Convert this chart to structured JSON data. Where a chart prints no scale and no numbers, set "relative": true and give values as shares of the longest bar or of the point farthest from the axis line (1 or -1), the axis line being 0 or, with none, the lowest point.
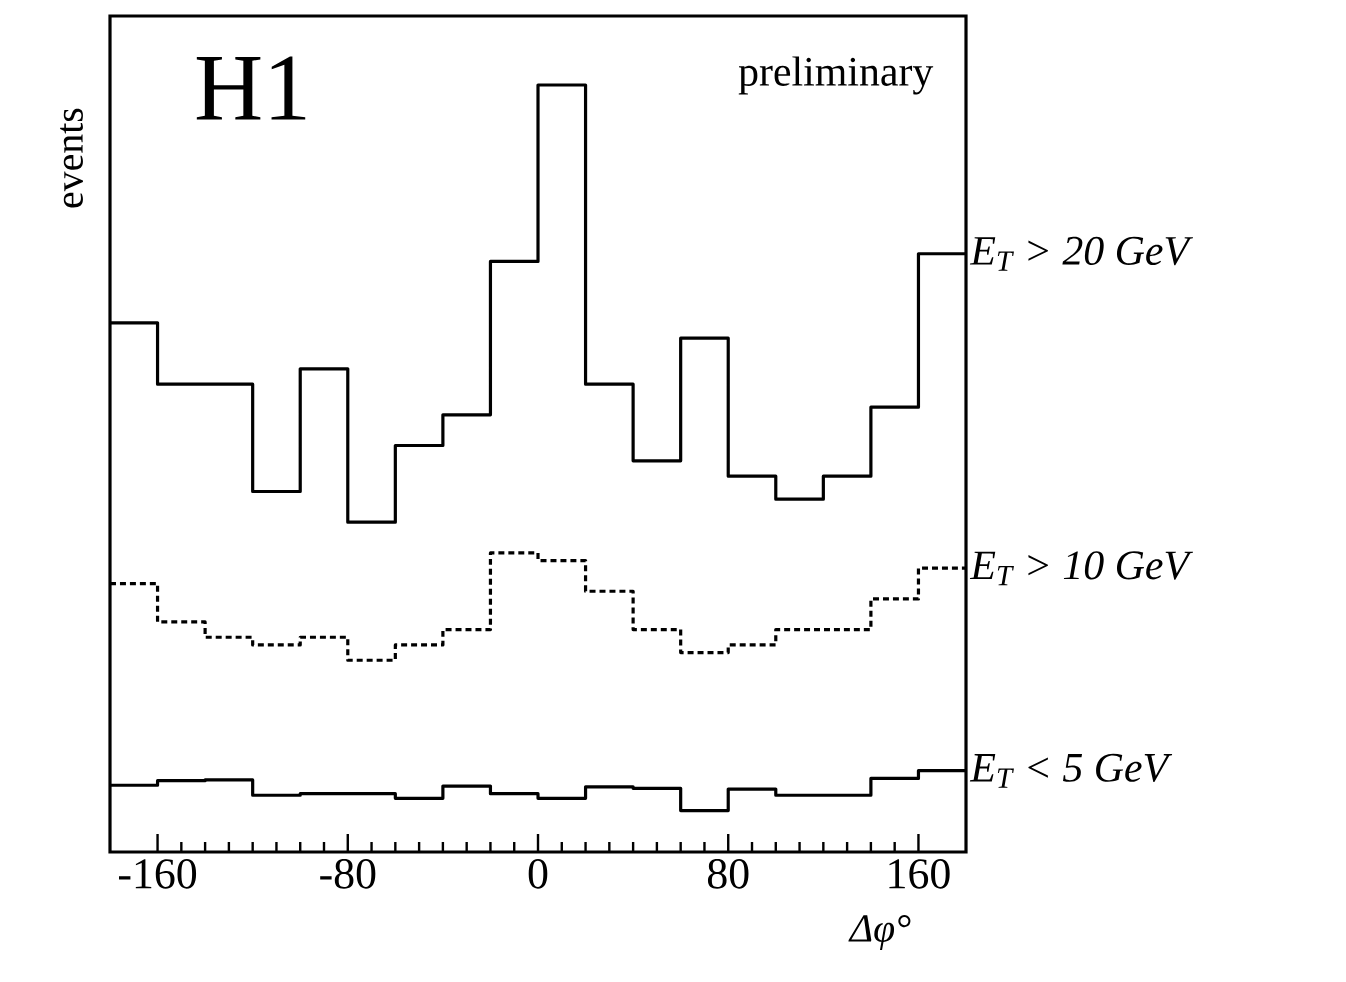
{
  "chart_data": {
    "type": "step",
    "relative": true,
    "xlabel": "Δφ°",
    "ylabel": "events",
    "annotations": [
      "H1",
      "preliminary"
    ],
    "x": [
      -180,
      -160,
      -140,
      -120,
      -100,
      -80,
      -60,
      -40,
      -20,
      0,
      20,
      40,
      60,
      80,
      100,
      120,
      140,
      160,
      180
    ],
    "xlim": [
      -180,
      180
    ],
    "xticks": [
      -160,
      -80,
      0,
      80,
      160
    ],
    "series": [
      {
        "name": "E$_{T}$ > 20 GeV",
        "color": "#000000",
        "line_style": "solid",
        "values": [
          0.69,
          0.61,
          0.61,
          0.47,
          0.63,
          0.43,
          0.53,
          0.57,
          0.77,
          1.0,
          0.61,
          0.51,
          0.67,
          0.49,
          0.46,
          0.49,
          0.58,
          0.78,
          0.78
        ]
      },
      {
        "name": "E$_{T}$ > 10 GeV",
        "color": "#000000",
        "line_style": "dashed",
        "values": [
          0.35,
          0.3,
          0.28,
          0.27,
          0.28,
          0.25,
          0.27,
          0.29,
          0.39,
          0.38,
          0.34,
          0.29,
          0.26,
          0.27,
          0.29,
          0.29,
          0.33,
          0.37,
          0.37
        ]
      },
      {
        "name": "E$_{T}$ < 5 GeV",
        "color": "#000000",
        "line_style": "solid",
        "values": [
          0.087,
          0.093,
          0.094,
          0.074,
          0.076,
          0.076,
          0.07,
          0.086,
          0.076,
          0.07,
          0.085,
          0.083,
          0.054,
          0.082,
          0.074,
          0.074,
          0.096,
          0.106,
          0.106
        ]
      }
    ]
  }
}
